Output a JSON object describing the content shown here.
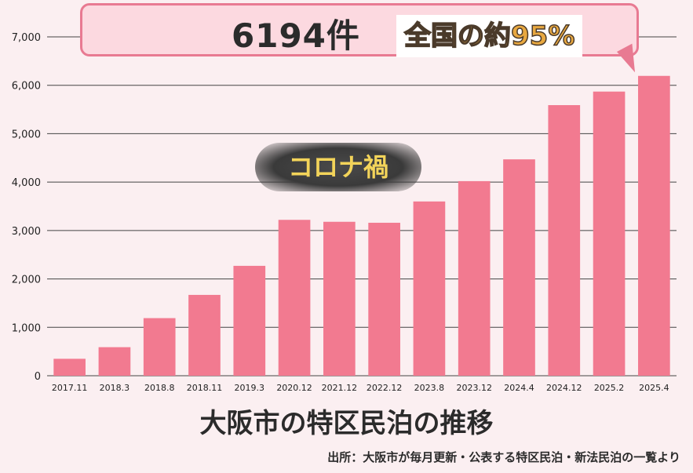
{
  "chart_data": {
    "type": "bar",
    "title": "大阪市の特区民泊の推移",
    "xlabel": "",
    "ylabel": "",
    "ylim": [
      0,
      7000
    ],
    "yticks": [
      "0",
      "1,000",
      "2,000",
      "3,000",
      "4,000",
      "5,000",
      "6,000",
      "7,000"
    ],
    "categories": [
      "2017.11",
      "2018.3",
      "2018.8",
      "2018.11",
      "2019.3",
      "2020.12",
      "2021.12",
      "2022.12",
      "2023.8",
      "2023.12",
      "2024.4",
      "2024.12",
      "2025.2",
      "2025.4"
    ],
    "values": [
      350,
      590,
      1190,
      1670,
      2270,
      3220,
      3180,
      3160,
      3600,
      4020,
      4470,
      5590,
      5870,
      6194
    ],
    "bar_color": "#f27a90",
    "grid": true,
    "annotations": {
      "count": "6194件",
      "share": "全国の約95%",
      "period": "コロナ禍"
    },
    "source": "出所：大阪市が毎月更新・公表する特区民泊・新法民泊の一覧より"
  }
}
